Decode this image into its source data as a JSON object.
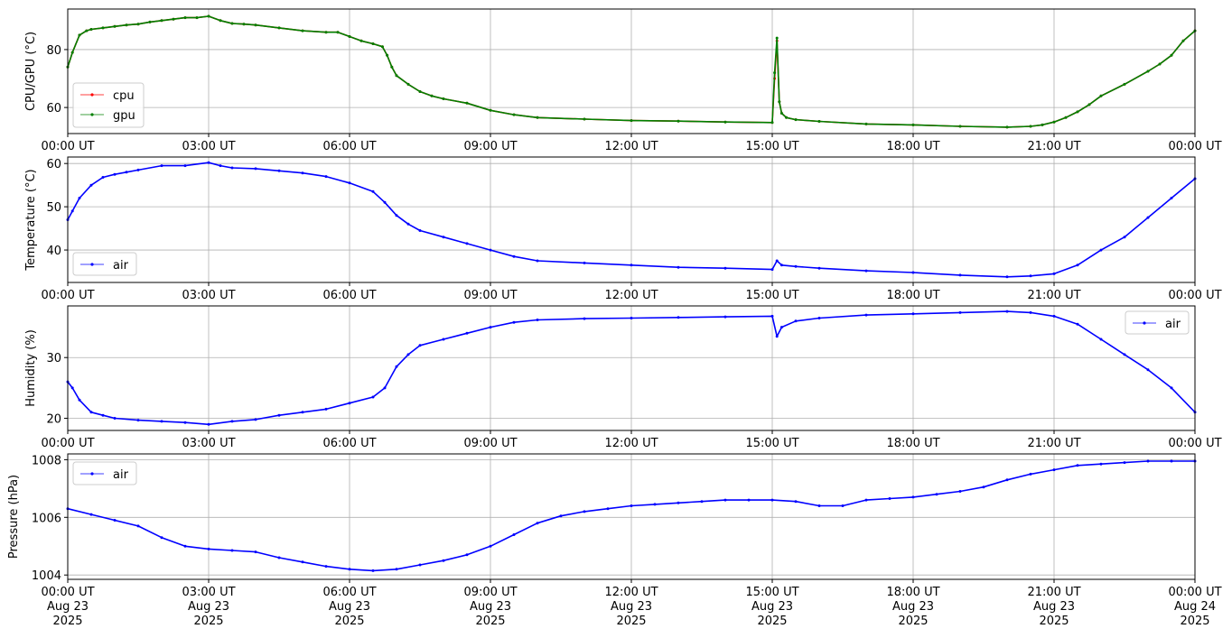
{
  "chart_data": [
    {
      "type": "line",
      "ylabel": "CPU/GPU (°C)",
      "xlabel": "",
      "x_ticks": [
        "00:00 UT",
        "03:00 UT",
        "06:00 UT",
        "09:00 UT",
        "12:00 UT",
        "15:00 UT",
        "18:00 UT",
        "21:00 UT",
        "00:00 UT"
      ],
      "x_range_hours": [
        0,
        24
      ],
      "ylim": [
        51,
        94
      ],
      "yticks": [
        60,
        80
      ],
      "grid": true,
      "legend": "lower-left",
      "x": [
        0,
        0.1,
        0.25,
        0.4,
        0.5,
        0.75,
        1,
        1.25,
        1.5,
        1.75,
        2,
        2.25,
        2.5,
        2.75,
        3,
        3.25,
        3.5,
        3.75,
        4,
        4.5,
        5,
        5.5,
        5.75,
        6,
        6.25,
        6.5,
        6.7,
        6.8,
        6.9,
        7,
        7.25,
        7.5,
        7.75,
        8,
        8.5,
        9,
        9.5,
        10,
        11,
        12,
        13,
        14,
        15,
        15.05,
        15.1,
        15.15,
        15.2,
        15.3,
        15.5,
        16,
        17,
        18,
        19,
        20,
        20.5,
        20.75,
        21,
        21.25,
        21.5,
        21.75,
        22,
        22.5,
        23,
        23.25,
        23.5,
        23.75,
        24
      ],
      "series": [
        {
          "name": "cpu",
          "color": "#ff0000",
          "values": [
            74,
            79,
            85,
            86.5,
            87,
            87.5,
            88,
            88.5,
            88.8,
            89.5,
            90,
            90.5,
            91,
            91,
            91.5,
            90,
            89,
            88.8,
            88.5,
            87.5,
            86.5,
            86,
            86,
            84.5,
            83,
            82,
            81,
            78,
            74,
            71,
            68,
            65.5,
            64,
            63,
            61.5,
            59,
            57.5,
            56.5,
            56,
            55.5,
            55.3,
            55,
            54.8,
            70,
            83,
            62,
            58,
            56.5,
            55.8,
            55.2,
            54.3,
            54,
            53.5,
            53.2,
            53.5,
            54,
            55,
            56.5,
            58.5,
            61,
            64,
            68,
            72.5,
            75,
            78,
            83,
            86.5
          ]
        },
        {
          "name": "gpu",
          "color": "#008000",
          "values": [
            74,
            79,
            85,
            86.5,
            87,
            87.5,
            88,
            88.5,
            88.8,
            89.5,
            90,
            90.5,
            91,
            91,
            91.5,
            90,
            89,
            88.8,
            88.5,
            87.5,
            86.5,
            86,
            86,
            84.5,
            83,
            82,
            81,
            78,
            74,
            71,
            68,
            65.5,
            64,
            63,
            61.5,
            59,
            57.5,
            56.5,
            56,
            55.5,
            55.3,
            55,
            54.8,
            72,
            84,
            62,
            58,
            56.5,
            55.8,
            55.2,
            54.3,
            54,
            53.5,
            53.2,
            53.5,
            54,
            55,
            56.5,
            58.5,
            61,
            64,
            68,
            72.5,
            75,
            78,
            83,
            86.5
          ]
        }
      ]
    },
    {
      "type": "line",
      "ylabel": "Temperature (°C)",
      "xlabel": "",
      "x_ticks": [
        "00:00 UT",
        "03:00 UT",
        "06:00 UT",
        "09:00 UT",
        "12:00 UT",
        "15:00 UT",
        "18:00 UT",
        "21:00 UT",
        "00:00 UT"
      ],
      "x_range_hours": [
        0,
        24
      ],
      "ylim": [
        32.5,
        61.5
      ],
      "yticks": [
        40,
        50,
        60
      ],
      "grid": true,
      "legend": "lower-left",
      "x": [
        0,
        0.1,
        0.25,
        0.5,
        0.75,
        1,
        1.25,
        1.5,
        2,
        2.5,
        3,
        3.25,
        3.5,
        4,
        4.5,
        5,
        5.5,
        6,
        6.5,
        6.75,
        7,
        7.25,
        7.5,
        8,
        8.5,
        9,
        9.5,
        10,
        11,
        12,
        13,
        14,
        15,
        15.1,
        15.2,
        15.5,
        16,
        17,
        18,
        19,
        20,
        20.5,
        21,
        21.5,
        22,
        22.5,
        23,
        23.5,
        24
      ],
      "series": [
        {
          "name": "air",
          "color": "#0000ff",
          "values": [
            47,
            49,
            52,
            55,
            56.8,
            57.5,
            58,
            58.5,
            59.5,
            59.5,
            60.2,
            59.5,
            59,
            58.8,
            58.3,
            57.8,
            57,
            55.5,
            53.5,
            51,
            48,
            46,
            44.5,
            43,
            41.5,
            40,
            38.5,
            37.5,
            37,
            36.5,
            36,
            35.8,
            35.5,
            37.5,
            36.5,
            36.2,
            35.8,
            35.2,
            34.8,
            34.2,
            33.8,
            34,
            34.5,
            36.5,
            40,
            43,
            47.5,
            52,
            56.5
          ]
        }
      ]
    },
    {
      "type": "line",
      "ylabel": "Humidity (%)",
      "xlabel": "",
      "x_ticks": [
        "00:00 UT",
        "03:00 UT",
        "06:00 UT",
        "09:00 UT",
        "12:00 UT",
        "15:00 UT",
        "18:00 UT",
        "21:00 UT",
        "00:00 UT"
      ],
      "x_range_hours": [
        0,
        24
      ],
      "ylim": [
        18,
        38.5
      ],
      "yticks": [
        20,
        30
      ],
      "grid": true,
      "legend": "upper-right",
      "x": [
        0,
        0.1,
        0.25,
        0.5,
        0.75,
        1,
        1.5,
        2,
        2.5,
        3,
        3.5,
        4,
        4.5,
        5,
        5.5,
        6,
        6.5,
        6.75,
        7,
        7.25,
        7.5,
        8,
        8.5,
        9,
        9.5,
        10,
        11,
        12,
        13,
        14,
        15,
        15.1,
        15.2,
        15.5,
        16,
        17,
        18,
        19,
        20,
        20.5,
        21,
        21.5,
        22,
        22.5,
        23,
        23.5,
        24
      ],
      "series": [
        {
          "name": "air",
          "color": "#0000ff",
          "values": [
            26,
            25,
            23,
            21,
            20.5,
            20,
            19.7,
            19.5,
            19.3,
            19,
            19.5,
            19.8,
            20.5,
            21,
            21.5,
            22.5,
            23.5,
            25,
            28.5,
            30.5,
            32,
            33,
            34,
            35,
            35.8,
            36.2,
            36.4,
            36.5,
            36.6,
            36.7,
            36.8,
            33.5,
            35,
            36,
            36.5,
            37,
            37.2,
            37.4,
            37.6,
            37.4,
            36.8,
            35.5,
            33,
            30.5,
            28,
            25,
            21
          ]
        }
      ]
    },
    {
      "type": "line",
      "ylabel": "Pressure (hPa)",
      "xlabel": "",
      "x_ticks": [
        "00:00 UT|Aug 23|2025",
        "03:00 UT|Aug 23|2025",
        "06:00 UT|Aug 23|2025",
        "09:00 UT|Aug 23|2025",
        "12:00 UT|Aug 23|2025",
        "15:00 UT|Aug 23|2025",
        "18:00 UT|Aug 23|2025",
        "21:00 UT|Aug 23|2025",
        "00:00 UT|Aug 24|2025"
      ],
      "x_range_hours": [
        0,
        24
      ],
      "ylim": [
        1003.85,
        1008.2
      ],
      "yticks": [
        1004,
        1006,
        1008
      ],
      "grid": true,
      "legend": "upper-left",
      "x": [
        0,
        0.5,
        1,
        1.5,
        2,
        2.5,
        3,
        3.5,
        4,
        4.5,
        5,
        5.5,
        6,
        6.5,
        7,
        7.5,
        8,
        8.5,
        9,
        9.5,
        10,
        10.5,
        11,
        11.5,
        12,
        12.5,
        13,
        13.5,
        14,
        14.5,
        15,
        15.5,
        16,
        16.5,
        17,
        17.5,
        18,
        18.5,
        19,
        19.5,
        20,
        20.5,
        21,
        21.5,
        22,
        22.5,
        23,
        23.5,
        24
      ],
      "series": [
        {
          "name": "air",
          "color": "#0000ff",
          "values": [
            1006.3,
            1006.1,
            1005.9,
            1005.7,
            1005.3,
            1005,
            1004.9,
            1004.85,
            1004.8,
            1004.6,
            1004.45,
            1004.3,
            1004.2,
            1004.15,
            1004.2,
            1004.35,
            1004.5,
            1004.7,
            1005,
            1005.4,
            1005.8,
            1006.05,
            1006.2,
            1006.3,
            1006.4,
            1006.45,
            1006.5,
            1006.55,
            1006.6,
            1006.6,
            1006.6,
            1006.55,
            1006.4,
            1006.4,
            1006.6,
            1006.65,
            1006.7,
            1006.8,
            1006.9,
            1007.05,
            1007.3,
            1007.5,
            1007.65,
            1007.8,
            1007.85,
            1007.9,
            1007.95,
            1007.95,
            1007.95
          ]
        }
      ]
    }
  ]
}
